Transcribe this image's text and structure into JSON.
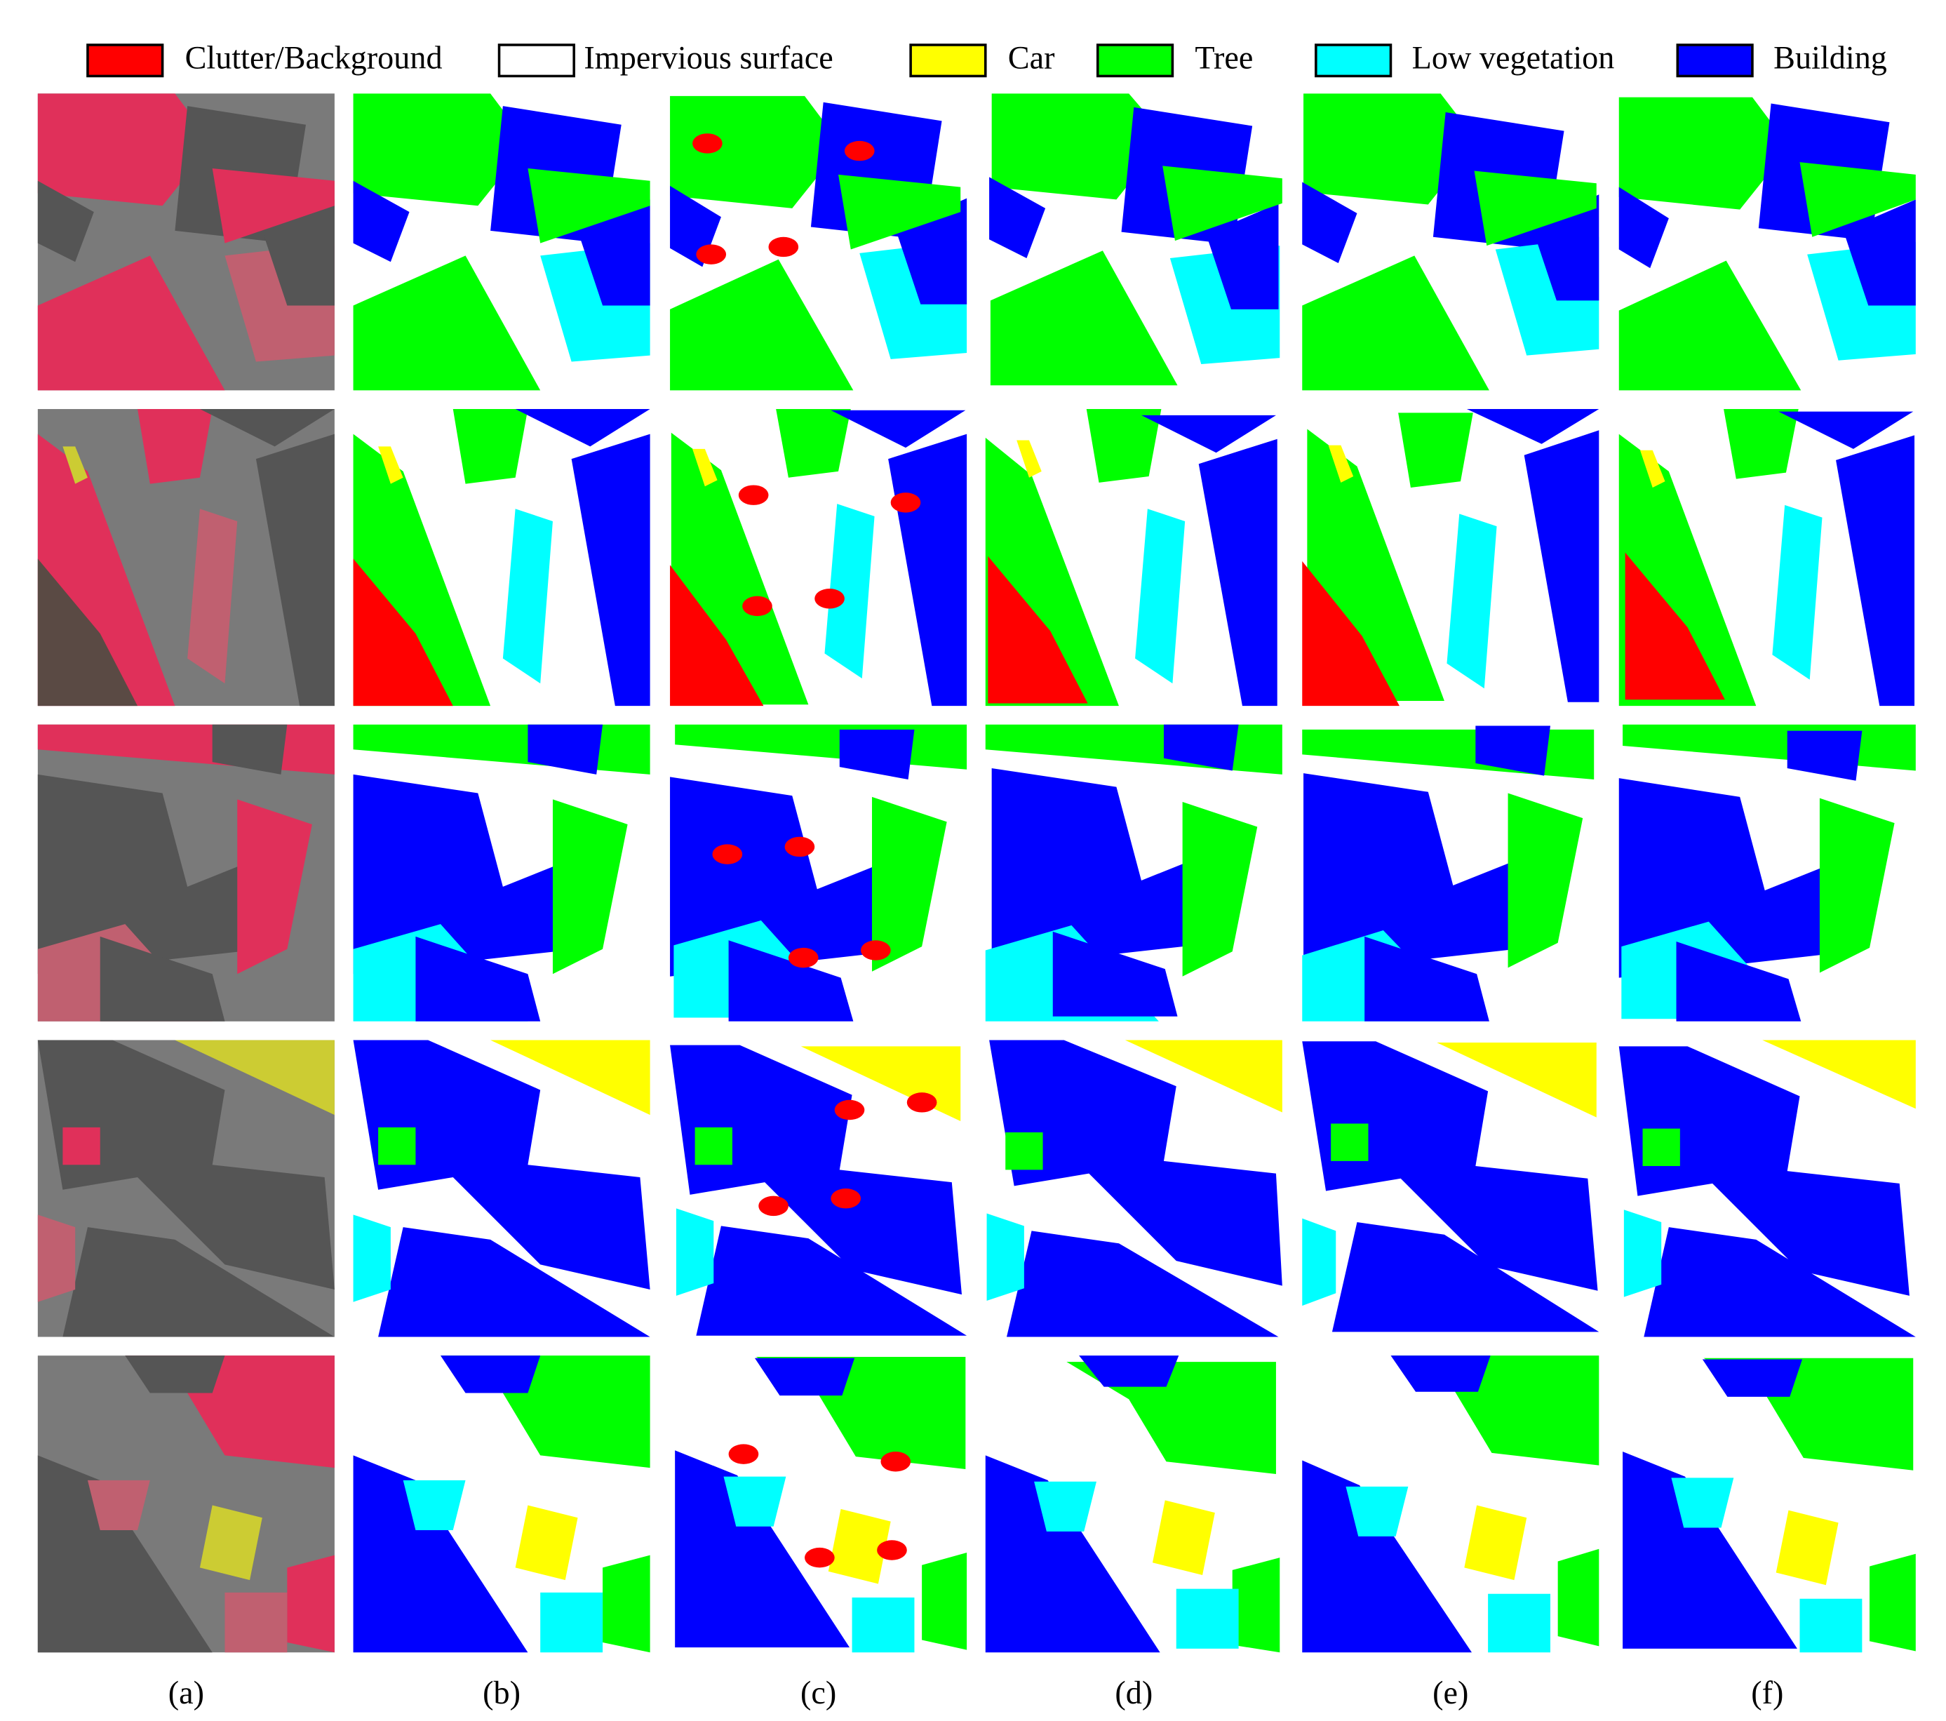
{
  "legend": [
    {
      "label": "Clutter/Background",
      "color": "#ff0000"
    },
    {
      "label": "Impervious surface",
      "color": "#ffffff"
    },
    {
      "label": "Car",
      "color": "#ffff00"
    },
    {
      "label": "Tree",
      "color": "#00ff00"
    },
    {
      "label": "Low vegetation",
      "color": "#00ffff"
    },
    {
      "label": "Building",
      "color": "#0000ff"
    }
  ],
  "columns": [
    "(a)",
    "(b)",
    "(c)",
    "(d)",
    "(e)",
    "(f)"
  ]
}
